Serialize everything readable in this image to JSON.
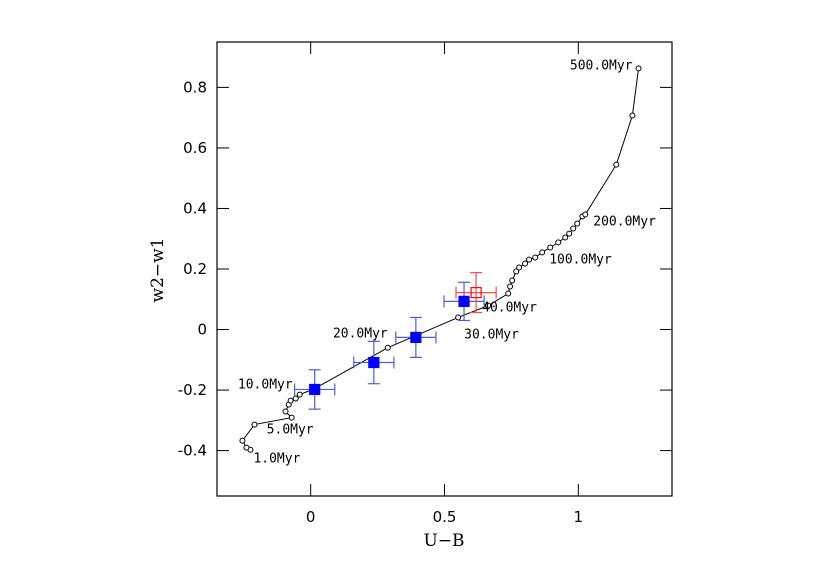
{
  "chart_data": {
    "type": "scatter",
    "xlabel": "U−B",
    "ylabel": "w2−w1",
    "xlim": [
      -0.35,
      1.35
    ],
    "ylim": [
      -0.55,
      0.95
    ],
    "xticks": [
      0,
      0.5,
      1
    ],
    "yticks": [
      -0.4,
      -0.2,
      0,
      0.2,
      0.4,
      0.6,
      0.8
    ],
    "series": [
      {
        "type": "line",
        "color": "#000000",
        "x": [
          -0.225,
          -0.24,
          -0.255,
          -0.21,
          -0.071,
          -0.094,
          -0.082,
          -0.075,
          -0.056,
          -0.041,
          0.015,
          0.288,
          0.551,
          0.663,
          0.738,
          0.745,
          0.753,
          0.768,
          0.779,
          0.801,
          0.816,
          0.839,
          0.865,
          0.895,
          0.925,
          0.951,
          0.966,
          0.981,
          0.996,
          1.015,
          1.026,
          1.142,
          1.202,
          1.225
        ],
        "values": [
          -0.397,
          -0.39,
          -0.367,
          -0.314,
          -0.291,
          -0.271,
          -0.248,
          -0.235,
          -0.228,
          -0.215,
          -0.195,
          -0.06,
          0.04,
          0.079,
          0.119,
          0.142,
          0.162,
          0.192,
          0.205,
          0.218,
          0.231,
          0.238,
          0.255,
          0.271,
          0.288,
          0.304,
          0.317,
          0.334,
          0.35,
          0.374,
          0.38,
          0.545,
          0.707,
          0.863
        ],
        "point_labels": [
          "1.0Myr",
          null,
          null,
          null,
          "5.0Myr",
          null,
          null,
          null,
          null,
          null,
          "10.0Myr",
          "20.0Myr",
          "30.0Myr",
          "40.0Myr",
          null,
          null,
          null,
          null,
          null,
          null,
          null,
          null,
          "100.0Myr",
          null,
          null,
          null,
          null,
          null,
          null,
          null,
          "200.0Myr",
          null,
          null,
          "500.0Myr"
        ]
      },
      {
        "type": "errorbar",
        "marker": "filled-square",
        "color": "#0000ff",
        "errcolor": "#4a5fd6",
        "x": [
          0.015,
          0.236,
          0.393,
          0.573
        ],
        "values": [
          -0.198,
          -0.109,
          -0.026,
          0.093
        ],
        "xerr": [
          0.075,
          0.075,
          0.075,
          0.075
        ],
        "yerr": [
          0.065,
          0.07,
          0.066,
          0.063
        ]
      },
      {
        "type": "errorbar",
        "marker": "open-square",
        "color": "#ff0000",
        "errcolor": "#ee5050",
        "x": [
          0.618
        ],
        "values": [
          0.122
        ],
        "xerr": [
          0.075
        ],
        "yerr": [
          0.066
        ]
      }
    ]
  }
}
